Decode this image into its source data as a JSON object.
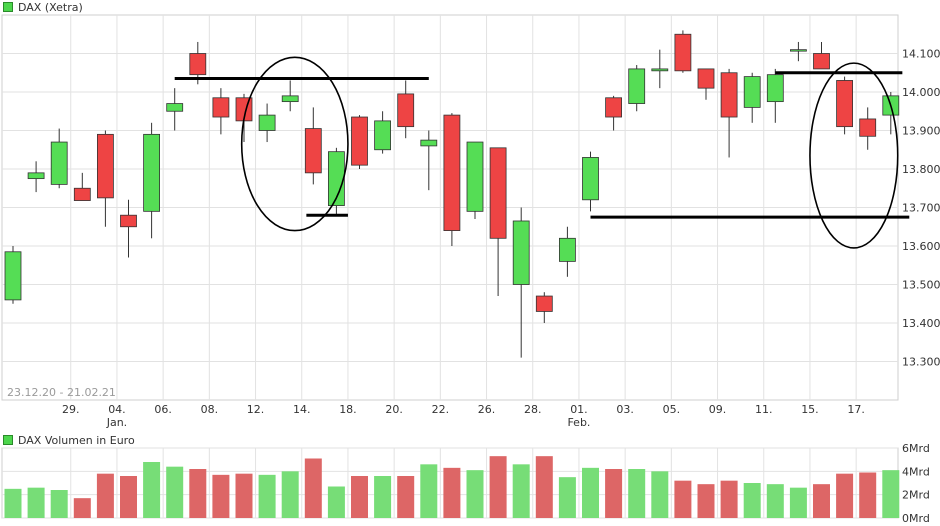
{
  "chart_data": [
    {
      "type": "candlestick",
      "title": "DAX (Xetra)",
      "date_range": "23.12.20 - 21.02.21",
      "ylim": [
        13200,
        14200
      ],
      "y_ticks": [
        "13.300",
        "13.400",
        "13.500",
        "13.600",
        "13.700",
        "13.800",
        "13.900",
        "14.000",
        "14.100"
      ],
      "y_tick_values": [
        13300,
        13400,
        13500,
        13600,
        13700,
        13800,
        13900,
        14000,
        14100
      ],
      "x_ticks": [
        {
          "label": "29.",
          "index": 2
        },
        {
          "label": "04.",
          "index": 4
        },
        {
          "label": "06.",
          "index": 6
        },
        {
          "label": "08.",
          "index": 8
        },
        {
          "label": "12.",
          "index": 10
        },
        {
          "label": "14.",
          "index": 12
        },
        {
          "label": "18.",
          "index": 14
        },
        {
          "label": "20.",
          "index": 16
        },
        {
          "label": "22.",
          "index": 18
        },
        {
          "label": "26.",
          "index": 20
        },
        {
          "label": "28.",
          "index": 22
        },
        {
          "label": "01.",
          "index": 24
        },
        {
          "label": "03.",
          "index": 26
        },
        {
          "label": "05.",
          "index": 28
        },
        {
          "label": "09.",
          "index": 30
        },
        {
          "label": "11.",
          "index": 32
        },
        {
          "label": "15.",
          "index": 34
        },
        {
          "label": "17.",
          "index": 36
        }
      ],
      "month_labels": [
        {
          "label": "Jan.",
          "index": 4
        },
        {
          "label": "Feb.",
          "index": 24
        }
      ],
      "grid": true,
      "up_color": "#55dd55",
      "down_color": "#ee4444",
      "ohlc": [
        [
          13460,
          13600,
          13450,
          13585
        ],
        [
          13775,
          13820,
          13740,
          13790
        ],
        [
          13760,
          13905,
          13750,
          13870
        ],
        [
          13750,
          13790,
          13720,
          13718
        ],
        [
          13890,
          13900,
          13650,
          13725
        ],
        [
          13680,
          13720,
          13570,
          13650
        ],
        [
          13690,
          13920,
          13620,
          13890
        ],
        [
          13950,
          14010,
          13900,
          13970
        ],
        [
          14100,
          14130,
          14020,
          14045
        ],
        [
          13985,
          14010,
          13890,
          13935
        ],
        [
          13985,
          13995,
          13870,
          13925
        ],
        [
          13900,
          13970,
          13870,
          13940
        ],
        [
          13975,
          14030,
          13950,
          13990
        ],
        [
          13905,
          13960,
          13760,
          13790
        ],
        [
          13705,
          13855,
          13680,
          13845
        ],
        [
          13935,
          13940,
          13800,
          13810
        ],
        [
          13850,
          13950,
          13840,
          13925
        ],
        [
          13995,
          14030,
          13880,
          13910
        ],
        [
          13860,
          13900,
          13745,
          13875
        ],
        [
          13940,
          13945,
          13600,
          13640
        ],
        [
          13690,
          13870,
          13670,
          13870
        ],
        [
          13855,
          13855,
          13470,
          13620
        ],
        [
          13500,
          13700,
          13310,
          13665
        ],
        [
          13470,
          13480,
          13400,
          13430
        ],
        [
          13560,
          13650,
          13520,
          13620
        ],
        [
          13720,
          13845,
          13690,
          13830
        ],
        [
          13985,
          13990,
          13900,
          13935
        ],
        [
          13970,
          14070,
          13950,
          14060
        ],
        [
          14055,
          14110,
          14010,
          14060
        ],
        [
          14150,
          14160,
          14050,
          14055
        ],
        [
          14060,
          14060,
          13980,
          14010
        ],
        [
          14050,
          14060,
          13830,
          13935
        ],
        [
          13960,
          14050,
          13920,
          14040
        ],
        [
          13975,
          14060,
          13920,
          14045
        ],
        [
          14110,
          14130,
          14080,
          14110
        ],
        [
          14100,
          14130,
          14060,
          14060
        ],
        [
          14030,
          14040,
          13890,
          13910
        ],
        [
          13930,
          13960,
          13850,
          13885
        ],
        [
          13940,
          14000,
          13890,
          13990
        ]
      ],
      "annotations": {
        "horizontal_lines": [
          {
            "value": 14035,
            "from_index": 7,
            "to_index": 18
          },
          {
            "value": 13680,
            "from_index": 12.7,
            "to_index": 14.5
          },
          {
            "value": 13675,
            "from_index": 25,
            "to_index": 38.8
          },
          {
            "value": 14050,
            "from_index": 33,
            "to_index": 38.5
          }
        ],
        "ellipses": [
          {
            "center_index": 12.2,
            "center_value": 13865,
            "index_radius": 2.3,
            "value_radius": 225
          },
          {
            "center_index": 36.4,
            "center_value": 13835,
            "index_radius": 1.9,
            "value_radius": 240
          }
        ]
      }
    },
    {
      "type": "bar",
      "title": "DAX Volumen in Euro",
      "ylim": [
        0,
        6
      ],
      "y_ticks": [
        "0Mrd",
        "2Mrd",
        "4Mrd",
        "6Mrd"
      ],
      "y_tick_values": [
        0,
        2,
        4,
        6
      ],
      "up_color": "#77dd77",
      "down_color": "#dd6666",
      "values": [
        2.5,
        2.6,
        2.4,
        1.7,
        3.8,
        3.6,
        4.8,
        4.4,
        4.2,
        3.7,
        3.8,
        3.7,
        4.0,
        5.1,
        2.7,
        3.6,
        3.6,
        3.6,
        4.6,
        4.3,
        4.1,
        5.3,
        4.6,
        5.3,
        3.5,
        4.3,
        4.2,
        4.2,
        4.0,
        3.2,
        2.9,
        3.2,
        3.0,
        2.9,
        2.6,
        2.9,
        3.8,
        3.9,
        4.1
      ]
    }
  ]
}
